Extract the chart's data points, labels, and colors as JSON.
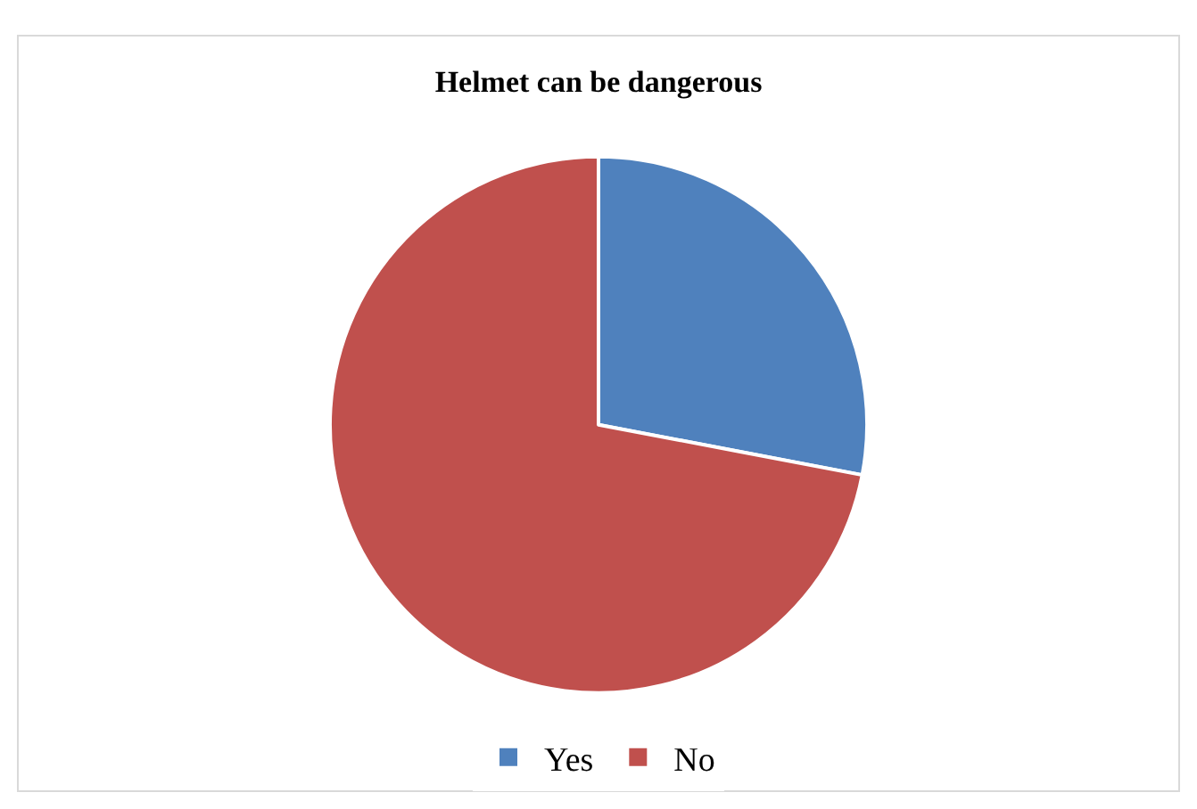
{
  "chart_data": {
    "type": "pie",
    "title": "Helmet can be dangerous",
    "categories": [
      "Yes",
      "No"
    ],
    "values": [
      28,
      72
    ],
    "colors": [
      "#4f81bd",
      "#c0504d"
    ],
    "legend": "bottom"
  }
}
